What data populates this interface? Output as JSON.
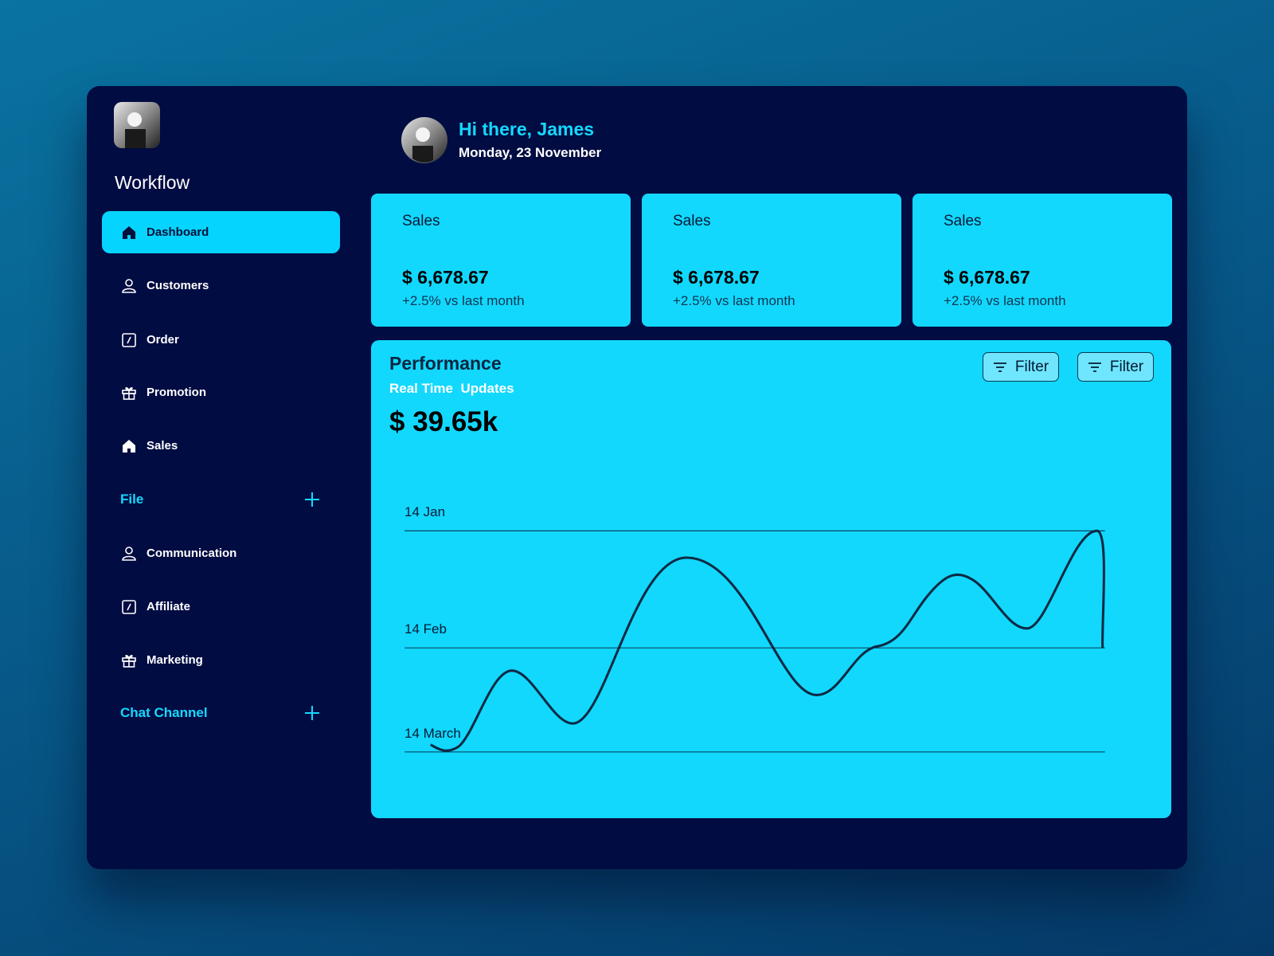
{
  "sidebar": {
    "brand": "Workflow",
    "main_menu": [
      "Dashboard",
      "Customers",
      "Order",
      "Promotion",
      "Sales"
    ],
    "file_section": {
      "title": "File",
      "items": [
        "Communication",
        "Affiliate",
        "Marketing"
      ]
    },
    "chat_section": {
      "title": "Chat Channel"
    }
  },
  "header": {
    "greeting": "Hi there, James",
    "date": "Monday, 23 November"
  },
  "stat_cards": [
    {
      "title": "Sales",
      "value": "$ 6,678.67",
      "change": "+2.5% vs last month"
    },
    {
      "title": "Sales",
      "value": "$ 6,678.67",
      "change": "+2.5% vs last month"
    },
    {
      "title": "Sales",
      "value": "$ 6,678.67",
      "change": "+2.5% vs last month"
    }
  ],
  "performance": {
    "title": "Performance",
    "subtitle": "Real Time  Updates",
    "value": "$ 39.65k",
    "filters": [
      "Filter",
      "Filter"
    ],
    "row_labels": [
      "14 Jan",
      "14 Feb",
      "14 March"
    ]
  }
}
